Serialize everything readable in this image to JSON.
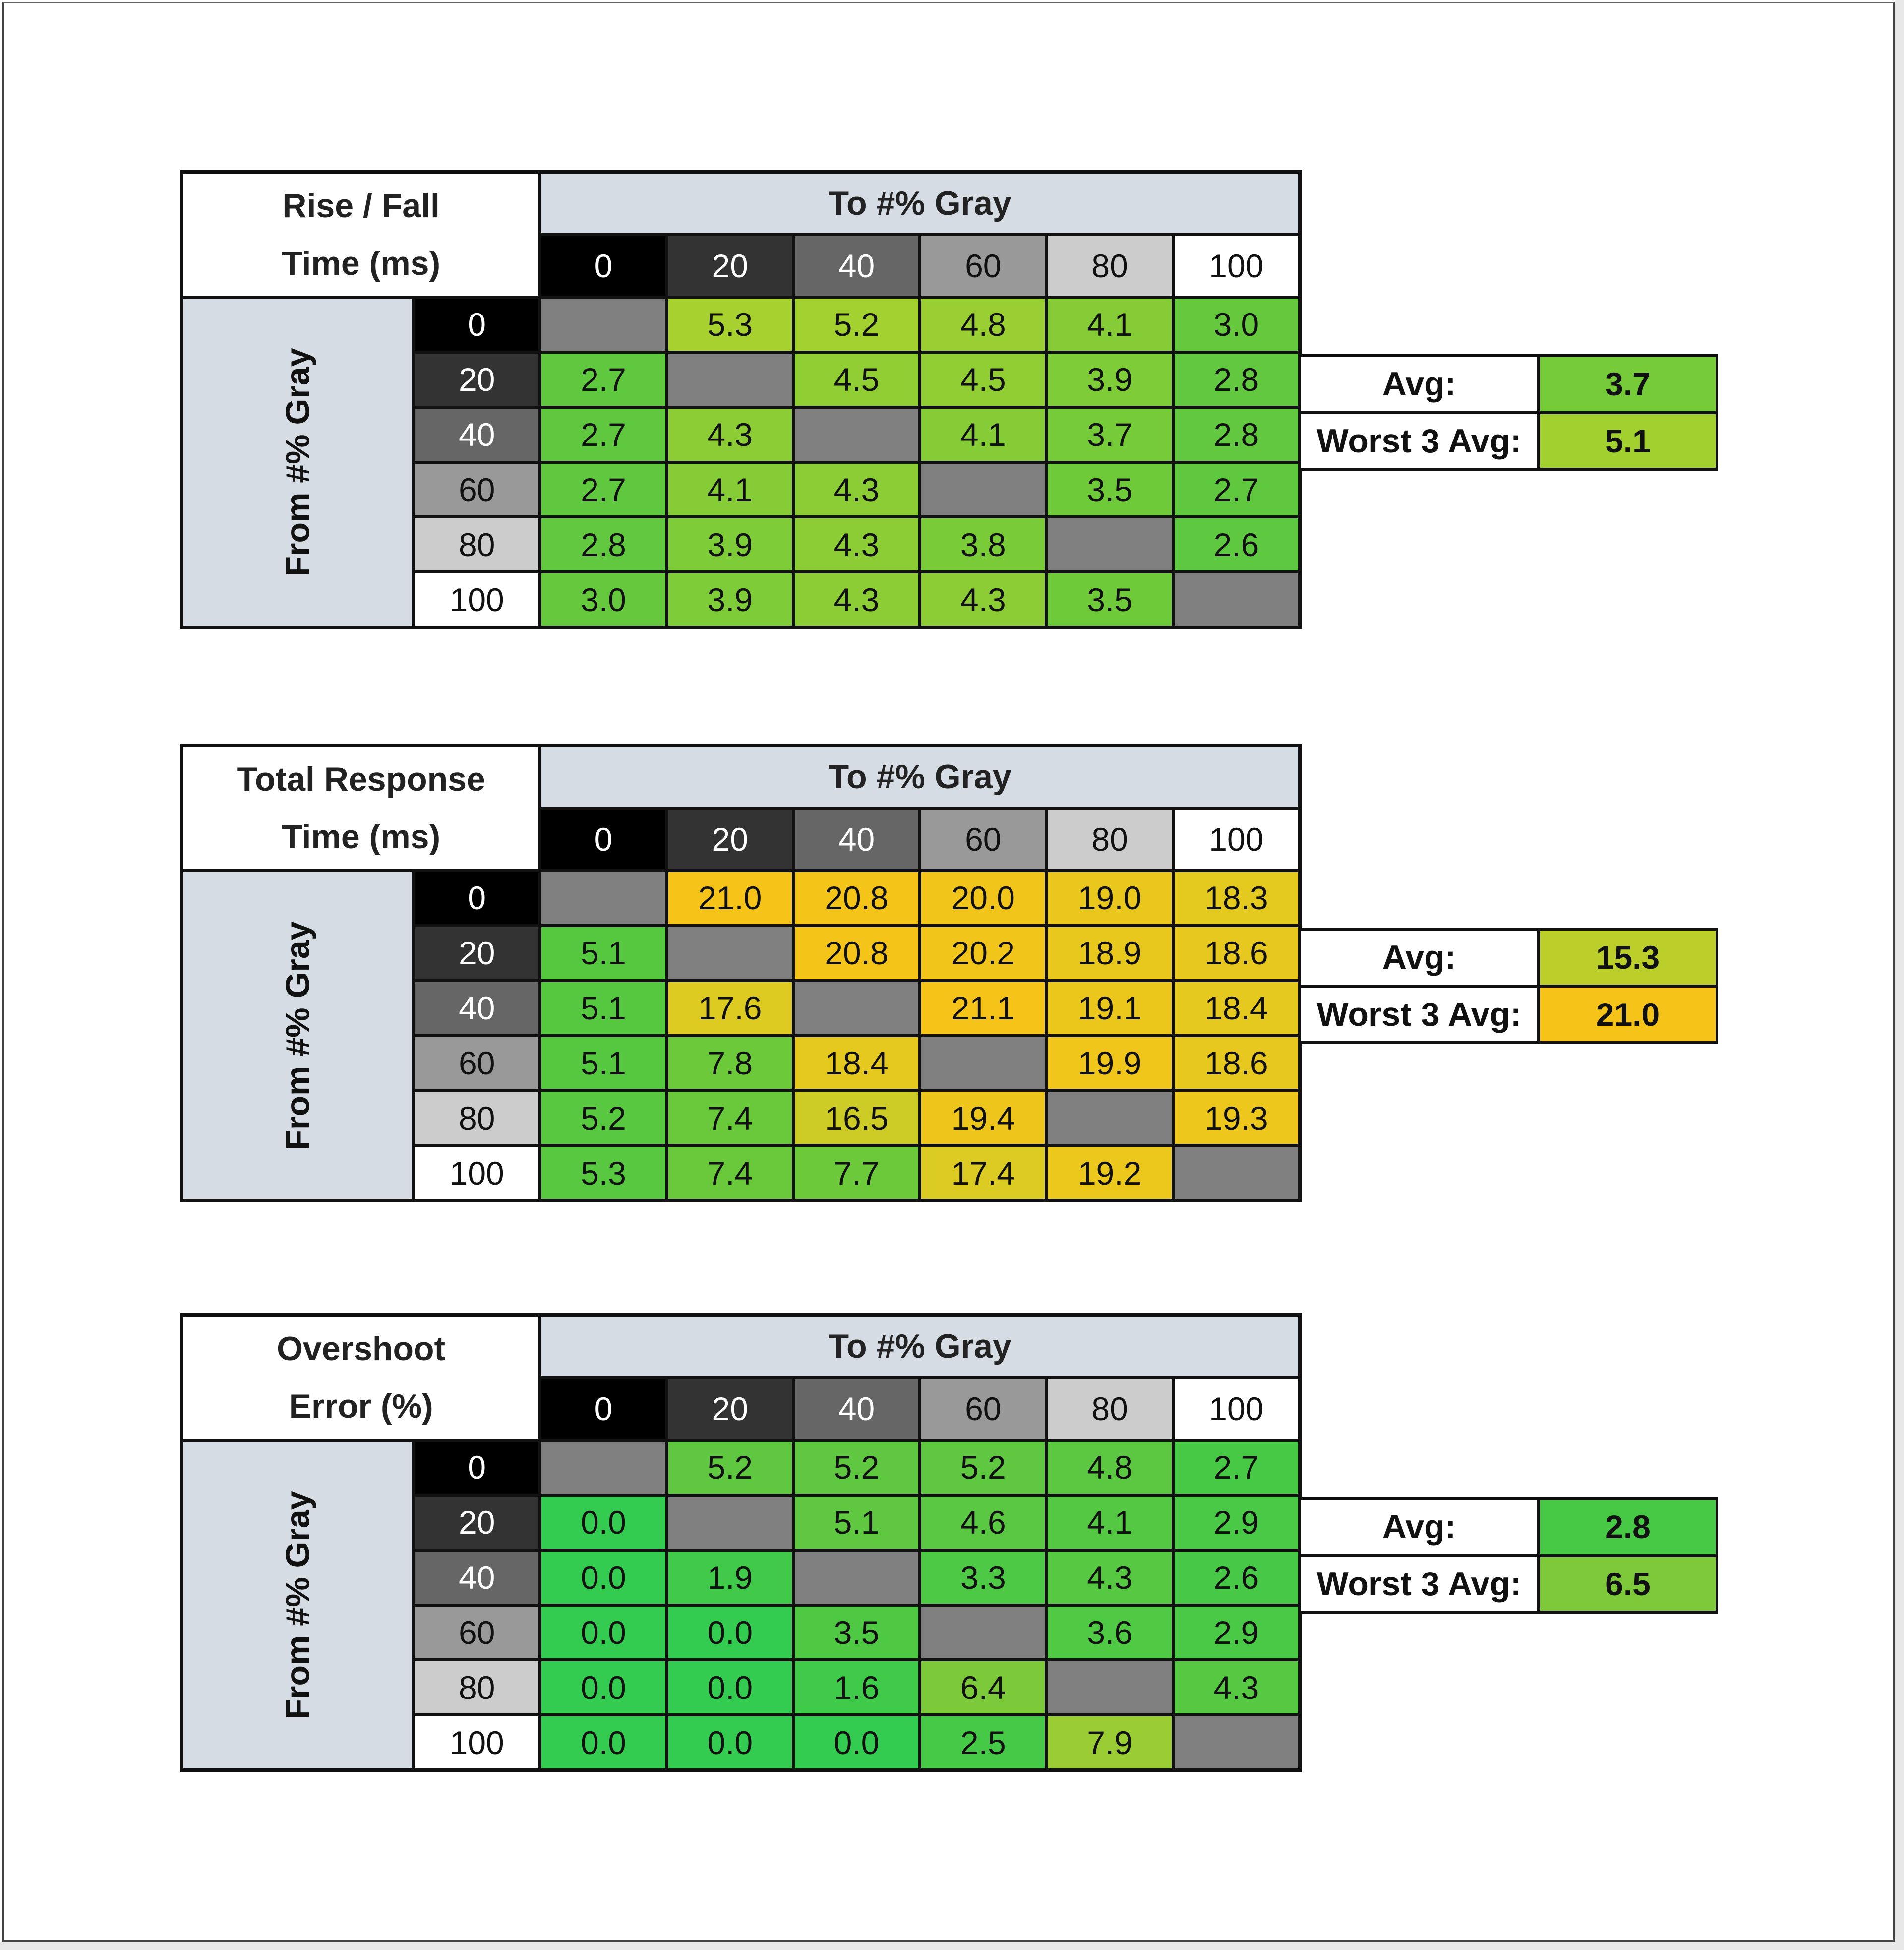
{
  "tables": [
    {
      "title_line1": "Rise / Fall",
      "title_line2": "Time (ms)",
      "to_label": "To #% Gray",
      "from_label": "From #% Gray",
      "levels": [
        "0",
        "20",
        "40",
        "60",
        "80",
        "100"
      ],
      "rows": [
        [
          null,
          "5.3",
          "5.2",
          "4.8",
          "4.1",
          "3.0"
        ],
        [
          "2.7",
          null,
          "4.5",
          "4.5",
          "3.9",
          "2.8"
        ],
        [
          "2.7",
          "4.3",
          null,
          "4.1",
          "3.7",
          "2.8"
        ],
        [
          "2.7",
          "4.1",
          "4.3",
          null,
          "3.5",
          "2.7"
        ],
        [
          "2.8",
          "3.9",
          "4.3",
          "3.8",
          null,
          "2.6"
        ],
        [
          "3.0",
          "3.9",
          "4.3",
          "4.3",
          "3.5",
          null
        ]
      ],
      "avg_label": "Avg:",
      "avg_value": "3.7",
      "worst_label": "Worst 3 Avg:",
      "worst_value": "5.1",
      "color_scale": [
        [
          2.6,
          "#5ec840"
        ],
        [
          3.5,
          "#6fca3a"
        ],
        [
          4.3,
          "#8ccd35"
        ],
        [
          5.3,
          "#a6d12e"
        ]
      ]
    },
    {
      "title_line1": "Total Response",
      "title_line2": "Time (ms)",
      "to_label": "To #% Gray",
      "from_label": "From #% Gray",
      "levels": [
        "0",
        "20",
        "40",
        "60",
        "80",
        "100"
      ],
      "rows": [
        [
          null,
          "21.0",
          "20.8",
          "20.0",
          "19.0",
          "18.3"
        ],
        [
          "5.1",
          null,
          "20.8",
          "20.2",
          "18.9",
          "18.6"
        ],
        [
          "5.1",
          "17.6",
          null,
          "21.1",
          "19.1",
          "18.4"
        ],
        [
          "5.1",
          "7.8",
          "18.4",
          null,
          "19.9",
          "18.6"
        ],
        [
          "5.2",
          "7.4",
          "16.5",
          "19.4",
          null,
          "19.3"
        ],
        [
          "5.3",
          "7.4",
          "7.7",
          "17.4",
          "19.2",
          null
        ]
      ],
      "avg_label": "Avg:",
      "avg_value": "15.3",
      "worst_label": "Worst 3 Avg:",
      "worst_value": "21.0",
      "color_scale": [
        [
          5.0,
          "#55c840"
        ],
        [
          7.8,
          "#6cc93a"
        ],
        [
          15.3,
          "#bcce2a"
        ],
        [
          17.5,
          "#dccb22"
        ],
        [
          19.5,
          "#efc61b"
        ],
        [
          21.1,
          "#f6c418"
        ]
      ]
    },
    {
      "title_line1": "Overshoot",
      "title_line2": "Error (%)",
      "to_label": "To #% Gray",
      "from_label": "From #% Gray",
      "levels": [
        "0",
        "20",
        "40",
        "60",
        "80",
        "100"
      ],
      "rows": [
        [
          null,
          "5.2",
          "5.2",
          "5.2",
          "4.8",
          "2.7"
        ],
        [
          "0.0",
          null,
          "5.1",
          "4.6",
          "4.1",
          "2.9"
        ],
        [
          "0.0",
          "1.9",
          null,
          "3.3",
          "4.3",
          "2.6"
        ],
        [
          "0.0",
          "0.0",
          "3.5",
          null,
          "3.6",
          "2.9"
        ],
        [
          "0.0",
          "0.0",
          "1.6",
          "6.4",
          null,
          "4.3"
        ],
        [
          "0.0",
          "0.0",
          "0.0",
          "2.5",
          "7.9",
          null
        ]
      ],
      "avg_label": "Avg:",
      "avg_value": "2.8",
      "worst_label": "Worst 3 Avg:",
      "worst_value": "6.5",
      "color_scale": [
        [
          0,
          "#33cc50"
        ],
        [
          2.8,
          "#48c946"
        ],
        [
          5.2,
          "#60c840"
        ],
        [
          6.5,
          "#7ec93a"
        ],
        [
          7.9,
          "#9acc33"
        ]
      ]
    }
  ],
  "colors": {
    "diagonal": "#808080",
    "header_bg": "#d6dce4",
    "level_bg": [
      "#000000",
      "#333333",
      "#666666",
      "#999999",
      "#cccccc",
      "#ffffff"
    ],
    "level_fg": [
      "#ffffff",
      "#ffffff",
      "#ffffff",
      "#111111",
      "#111111",
      "#111111"
    ]
  }
}
